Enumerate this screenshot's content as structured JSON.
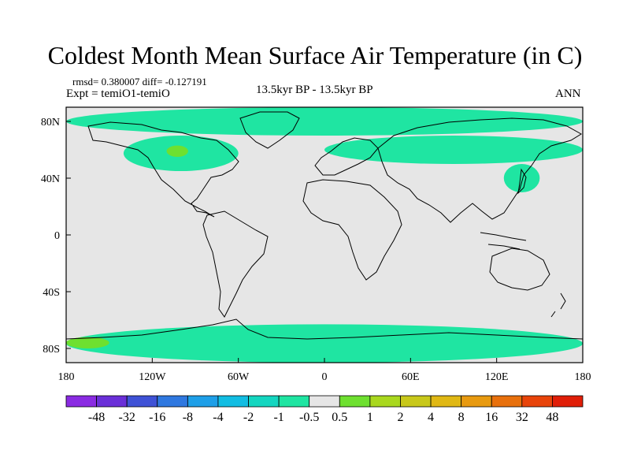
{
  "chart_data": {
    "type": "heatmap",
    "title": "Coldest Month Mean Surface Air Temperature (in C)",
    "stats_text": "rmsd= 0.380007  diff= -0.127191",
    "left_label": "Expt = temiO1-temiO",
    "center_label": "13.5kyr BP - 13.5kyr BP",
    "right_label": "ANN",
    "x_ticks": [
      "180",
      "120W",
      "60W",
      "0",
      "60E",
      "120E",
      "180"
    ],
    "x_tick_values": [
      -180,
      -120,
      -60,
      0,
      60,
      120,
      180
    ],
    "y_ticks": [
      "80N",
      "40N",
      "0",
      "40S",
      "80S"
    ],
    "y_tick_values": [
      80,
      40,
      0,
      -40,
      -80
    ],
    "xlim": [
      -180,
      180
    ],
    "ylim": [
      -90,
      90
    ],
    "colorbar": {
      "labels": [
        "-48",
        "-32",
        "-16",
        "-8",
        "-4",
        "-2",
        "-1",
        "-0.5",
        "0.5",
        "1",
        "2",
        "4",
        "8",
        "16",
        "32",
        "48"
      ],
      "colors": [
        "#8a2be2",
        "#6a2fd8",
        "#3f52d6",
        "#2f78e0",
        "#1e9fe8",
        "#12bde2",
        "#14d6c0",
        "#1fe5a2",
        "#e6e6e6",
        "#6ee030",
        "#a9d81e",
        "#c8c81a",
        "#e0b814",
        "#e89a10",
        "#e8700c",
        "#e8440a",
        "#e01e08"
      ]
    },
    "regions": [
      {
        "name": "arctic",
        "value": -1,
        "lon": [
          -180,
          180
        ],
        "lat": [
          70,
          90
        ]
      },
      {
        "name": "north-america",
        "value": -1,
        "lon": [
          -140,
          -60
        ],
        "lat": [
          45,
          70
        ]
      },
      {
        "name": "hudson",
        "value": 0.5,
        "lon": [
          -110,
          -95
        ],
        "lat": [
          55,
          63
        ]
      },
      {
        "name": "eurasia",
        "value": -1,
        "lon": [
          0,
          180
        ],
        "lat": [
          50,
          70
        ]
      },
      {
        "name": "east-asia",
        "value": -1,
        "lon": [
          125,
          150
        ],
        "lat": [
          30,
          50
        ]
      },
      {
        "name": "antarctic",
        "value": -1,
        "lon": [
          -180,
          180
        ],
        "lat": [
          -90,
          -63
        ]
      },
      {
        "name": "ross-sea",
        "value": 0.5,
        "lon": [
          -180,
          -150
        ],
        "lat": [
          -80,
          -72
        ]
      }
    ]
  }
}
